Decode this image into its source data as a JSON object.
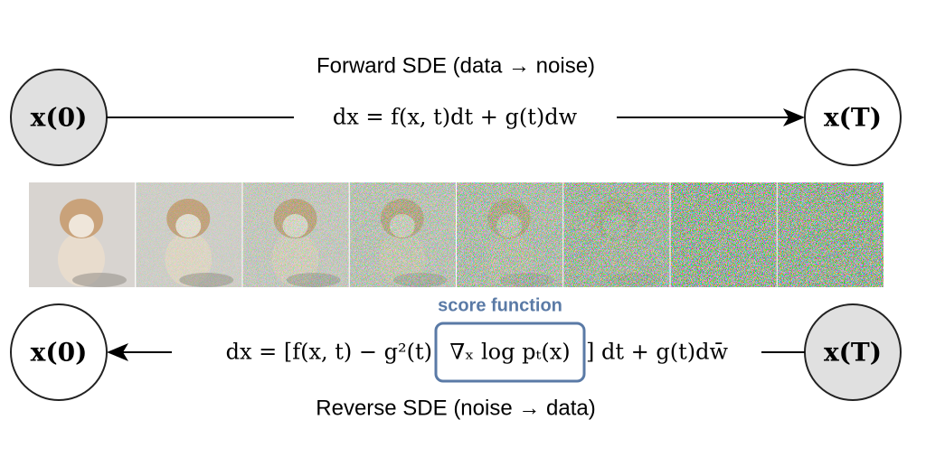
{
  "forward": {
    "title": "Forward SDE (data → noise)",
    "equation": "dx = f(x, t)dt + g(t)dw",
    "start": "x(0)",
    "end": "x(T)"
  },
  "reverse": {
    "title": "Reverse SDE (noise → data)",
    "equation_left": "dx = [f(x, t) − g²(t)",
    "score_term": "∇ₓ log pₜ(x)",
    "equation_right": "] dt + g(t)dw̄",
    "score_label": "score function",
    "start": "x(T)",
    "end": "x(0)"
  }
}
